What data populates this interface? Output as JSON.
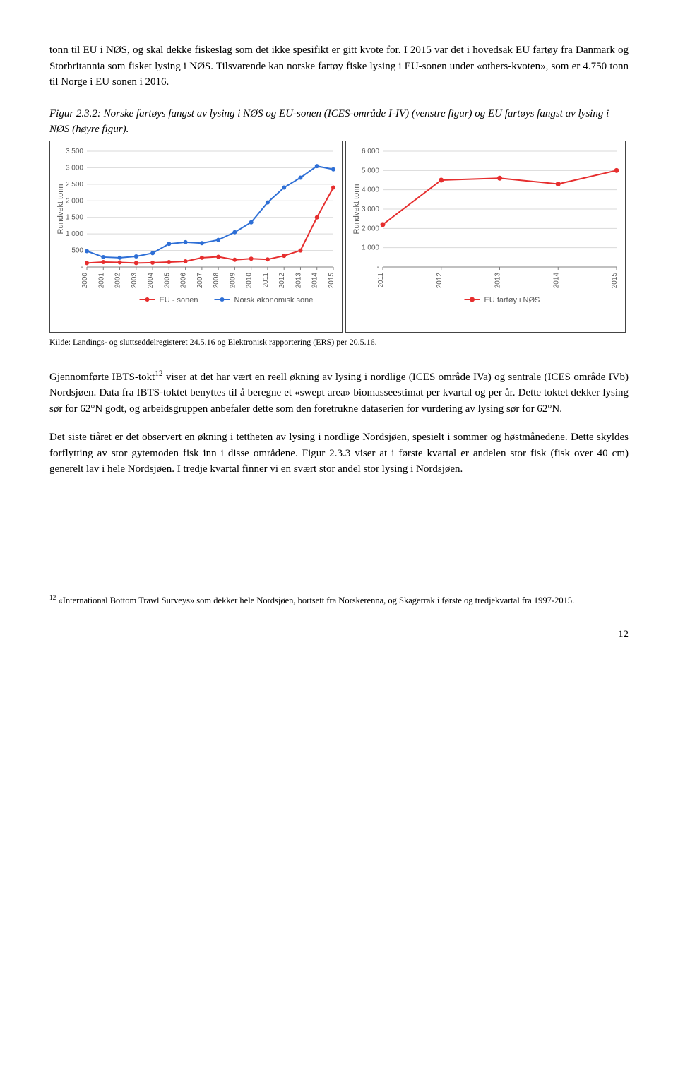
{
  "para1": "tonn til EU i NØS, og skal dekke fiskeslag som det ikke spesifikt er gitt kvote for. I 2015 var det i hovedsak EU fartøy fra Danmark og Storbritannia som fisket lysing i NØS. Tilsvarende kan norske fartøy fiske lysing i EU-sonen under «others-kvoten», som er 4.750 tonn til Norge i EU sonen i 2016.",
  "figcaption": "Figur 2.3.2: Norske fartøys fangst av lysing i NØS og EU-sonen (ICES-område I-IV) (venstre figur) og EU fartøys fangst av lysing i NØS (høyre figur).",
  "source": "Kilde: Landings- og sluttseddelregisteret 24.5.16 og Elektronisk rapportering (ERS) per 20.5.16.",
  "para2a": "Gjennomførte IBTS-tokt",
  "para2sup": "12",
  "para2b": " viser at det har vært en reell økning av lysing i nordlige (ICES område IVa) og sentrale (ICES område IVb) Nordsjøen. Data fra IBTS-toktet benyttes til å beregne et «swept area» biomasseestimat per kvartal og per år. Dette toktet dekker lysing sør for 62°N godt, og arbeidsgruppen anbefaler dette som den foretrukne dataserien for vurdering av lysing sør for 62°N.",
  "para3": "Det siste tiåret er det observert en økning i tettheten av lysing i nordlige Nordsjøen, spesielt i sommer og høstmånedene. Dette skyldes forflytting av stor gytemoden fisk inn i disse områdene. Figur 2.3.3 viser at i første kvartal er andelen stor fisk (fisk over 40 cm) generelt lav i hele Nordsjøen. I tredje kvartal finner vi en svært stor andel stor lysing i Nordsjøen.",
  "footnote_num": "12",
  "footnote_text": " «International Bottom Trawl Surveys» som dekker hele Nordsjøen, bortsett fra Norskerenna, og Skagerrak i første og tredjekvartal fra 1997-2015.",
  "page_number": "12",
  "chart_left": {
    "type": "line",
    "ylabel": "Rundvekt tonn",
    "yticks": [
      "-",
      "500",
      "1 000",
      "1 500",
      "2 000",
      "2 500",
      "3 000",
      "3 500"
    ],
    "ymax": 3500,
    "xticks": [
      "2000",
      "2001",
      "2002",
      "2003",
      "2004",
      "2005",
      "2006",
      "2007",
      "2008",
      "2009",
      "2010",
      "2011",
      "2012",
      "2013",
      "2014",
      "2015"
    ],
    "series": [
      {
        "name": "EU - sonen",
        "color": "#e62e2e",
        "values": [
          120,
          150,
          140,
          120,
          130,
          150,
          170,
          280,
          310,
          220,
          250,
          230,
          340,
          500,
          1500,
          2400
        ]
      },
      {
        "name": "Norsk økonomisk sone",
        "color": "#2e6fd6",
        "values": [
          480,
          300,
          280,
          320,
          420,
          700,
          750,
          720,
          820,
          1050,
          1350,
          1950,
          2400,
          2700,
          3050,
          2950
        ]
      }
    ],
    "marker_r": 3,
    "line_w": 2,
    "grid_color": "#d9d9d9",
    "label_font": 11,
    "tick_font": 10
  },
  "chart_right": {
    "type": "line",
    "ylabel": "Rundvekt tonn",
    "yticks": [
      "-",
      "1 000",
      "2 000",
      "3 000",
      "4 000",
      "5 000",
      "6 000"
    ],
    "ymax": 6000,
    "xticks": [
      "2011",
      "2012",
      "2013",
      "2014",
      "2015"
    ],
    "series": [
      {
        "name": "EU fartøy i NØS",
        "color": "#e62e2e",
        "values": [
          2200,
          4500,
          4600,
          4300,
          5000
        ]
      }
    ],
    "marker_r": 3.5,
    "line_w": 2,
    "grid_color": "#d9d9d9",
    "label_font": 11,
    "tick_font": 10
  }
}
